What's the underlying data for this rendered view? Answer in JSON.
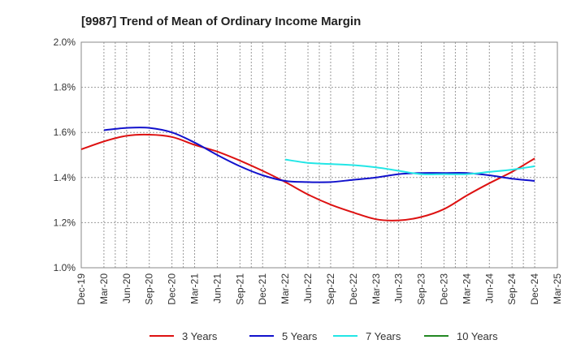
{
  "chart_data": {
    "type": "line",
    "title": "[9987]  Trend of Mean of Ordinary Income Margin",
    "xlabel": "",
    "ylabel": "",
    "x": [
      "Dec-19",
      "Mar-20",
      "Jun-20",
      "Sep-20",
      "Dec-20",
      "Mar-21",
      "Jun-21",
      "Sep-21",
      "Dec-21",
      "Mar-22",
      "Jun-22",
      "Sep-22",
      "Dec-22",
      "Mar-23",
      "Jun-23",
      "Sep-23",
      "Dec-23",
      "Mar-24",
      "Jun-24",
      "Sep-24",
      "Dec-24",
      "Mar-25"
    ],
    "y_ticks": [
      "1.0%",
      "1.2%",
      "1.4%",
      "1.6%",
      "1.8%",
      "2.0%"
    ],
    "ylim": [
      1.0,
      2.0
    ],
    "grid": true,
    "legend_position": "bottom",
    "series": [
      {
        "name": "3 Years",
        "color": "#dd1111",
        "values": [
          1.525,
          1.56,
          1.585,
          1.59,
          1.58,
          1.545,
          1.515,
          1.475,
          1.43,
          1.38,
          1.325,
          1.28,
          1.245,
          1.215,
          1.21,
          1.225,
          1.26,
          1.32,
          1.375,
          1.425,
          1.485,
          null
        ]
      },
      {
        "name": "5 Years",
        "color": "#1111cc",
        "values": [
          null,
          1.61,
          1.62,
          1.62,
          1.6,
          1.555,
          1.5,
          1.45,
          1.41,
          1.385,
          1.38,
          1.38,
          1.39,
          1.4,
          1.415,
          1.42,
          1.42,
          1.42,
          1.41,
          1.395,
          1.385,
          null
        ]
      },
      {
        "name": "7 Years",
        "color": "#22e6e6",
        "values": [
          null,
          null,
          null,
          null,
          null,
          null,
          null,
          null,
          null,
          1.48,
          1.465,
          1.46,
          1.455,
          1.445,
          1.43,
          1.415,
          1.415,
          1.415,
          1.425,
          1.435,
          1.45,
          null
        ]
      },
      {
        "name": "10 Years",
        "color": "#228822",
        "values": [
          null,
          null,
          null,
          null,
          null,
          null,
          null,
          null,
          null,
          null,
          null,
          null,
          null,
          null,
          null,
          null,
          null,
          null,
          null,
          null,
          null,
          null
        ]
      }
    ]
  }
}
